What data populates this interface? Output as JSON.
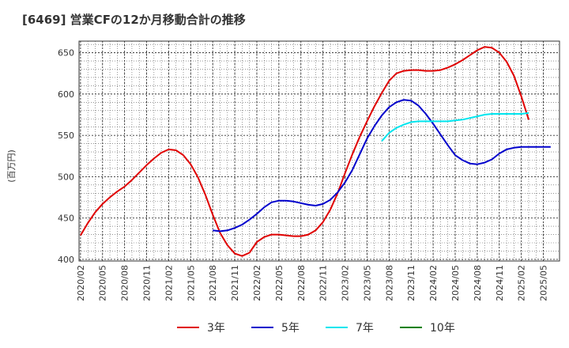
{
  "title": "[6469]  営業CFの12か月移動合計の推移",
  "colors": {
    "3年": "#e00000",
    "5年": "#0000cc",
    "7年": "#00e5ee",
    "10年": "#008000"
  },
  "chart_data": {
    "type": "line",
    "title": "[6469]  営業CFの12か月移動合計の推移",
    "ylabel": "(百万円)",
    "xlabel": "",
    "ylim": [
      398,
      664
    ],
    "yticks": [
      400,
      450,
      500,
      550,
      600,
      650
    ],
    "xticks": [
      "2020/02",
      "2020/05",
      "2020/08",
      "2020/11",
      "2021/02",
      "2021/05",
      "2021/08",
      "2021/11",
      "2022/02",
      "2022/05",
      "2022/08",
      "2022/11",
      "2023/02",
      "2023/05",
      "2023/08",
      "2023/11",
      "2024/02",
      "2024/05",
      "2024/08",
      "2024/11",
      "2025/02",
      "2025/05"
    ],
    "grid": true,
    "legend_position": "bottom",
    "series": [
      {
        "name": "3年",
        "start": "2020/02",
        "values": [
          429,
          444,
          457,
          467,
          475,
          482,
          488,
          496,
          505,
          514,
          522,
          529,
          533,
          532,
          526,
          515,
          499,
          478,
          454,
          432,
          417,
          407,
          404,
          408,
          421,
          427,
          430,
          430,
          429,
          428,
          428,
          430,
          435,
          445,
          460,
          480,
          504,
          527,
          548,
          567,
          585,
          601,
          616,
          625,
          628,
          629,
          629,
          628,
          628,
          629,
          632,
          636,
          641,
          647,
          653,
          657,
          656,
          650,
          639,
          622,
          597,
          569
        ]
      },
      {
        "name": "5年",
        "start": "2021/08",
        "values": [
          435,
          434,
          435,
          438,
          442,
          448,
          455,
          463,
          469,
          471,
          471,
          470,
          468,
          466,
          465,
          467,
          472,
          481,
          493,
          508,
          527,
          546,
          561,
          574,
          584,
          590,
          593,
          592,
          586,
          576,
          564,
          551,
          538,
          526,
          520,
          516,
          515,
          517,
          521,
          528,
          533,
          535,
          536,
          536,
          536,
          536,
          536
        ]
      },
      {
        "name": "7年",
        "start": "2023/07",
        "values": [
          543,
          553,
          559,
          563,
          566,
          567,
          567,
          567,
          567,
          567,
          568,
          569,
          571,
          573,
          575,
          576,
          576,
          576,
          576,
          576,
          577
        ]
      },
      {
        "name": "10年",
        "start": "",
        "values": []
      }
    ]
  }
}
